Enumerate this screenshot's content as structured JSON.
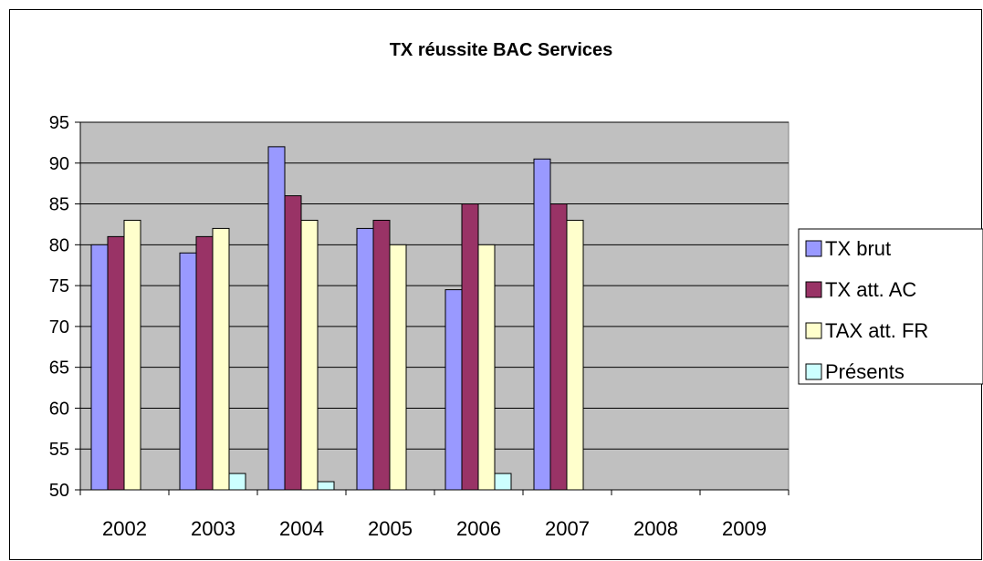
{
  "chart_data": {
    "type": "bar",
    "title": "TX réussite BAC Services",
    "xlabel": "",
    "ylabel": "",
    "categories": [
      "2002",
      "2003",
      "2004",
      "2005",
      "2006",
      "2007",
      "2008",
      "2009"
    ],
    "ylim": [
      50,
      95
    ],
    "yticks": [
      "50",
      "55",
      "60",
      "65",
      "70",
      "75",
      "80",
      "85",
      "90",
      "95"
    ],
    "grid": true,
    "legend_position": "right",
    "plot_background": "#C0C0C0",
    "series": [
      {
        "name": "TX brut",
        "color": "#9999FF",
        "values": [
          80,
          79,
          92,
          82,
          74.5,
          90.5,
          null,
          null
        ]
      },
      {
        "name": "TX att. AC",
        "color": "#993366",
        "values": [
          81,
          81,
          86,
          83,
          85,
          85,
          null,
          null
        ]
      },
      {
        "name": "TAX att. FR",
        "color": "#FFFFCC",
        "values": [
          83,
          82,
          83,
          80,
          80,
          83,
          null,
          null
        ]
      },
      {
        "name": "Présents",
        "color": "#CCFFFF",
        "values": [
          null,
          52,
          51,
          null,
          52,
          null,
          null,
          null
        ]
      }
    ]
  }
}
